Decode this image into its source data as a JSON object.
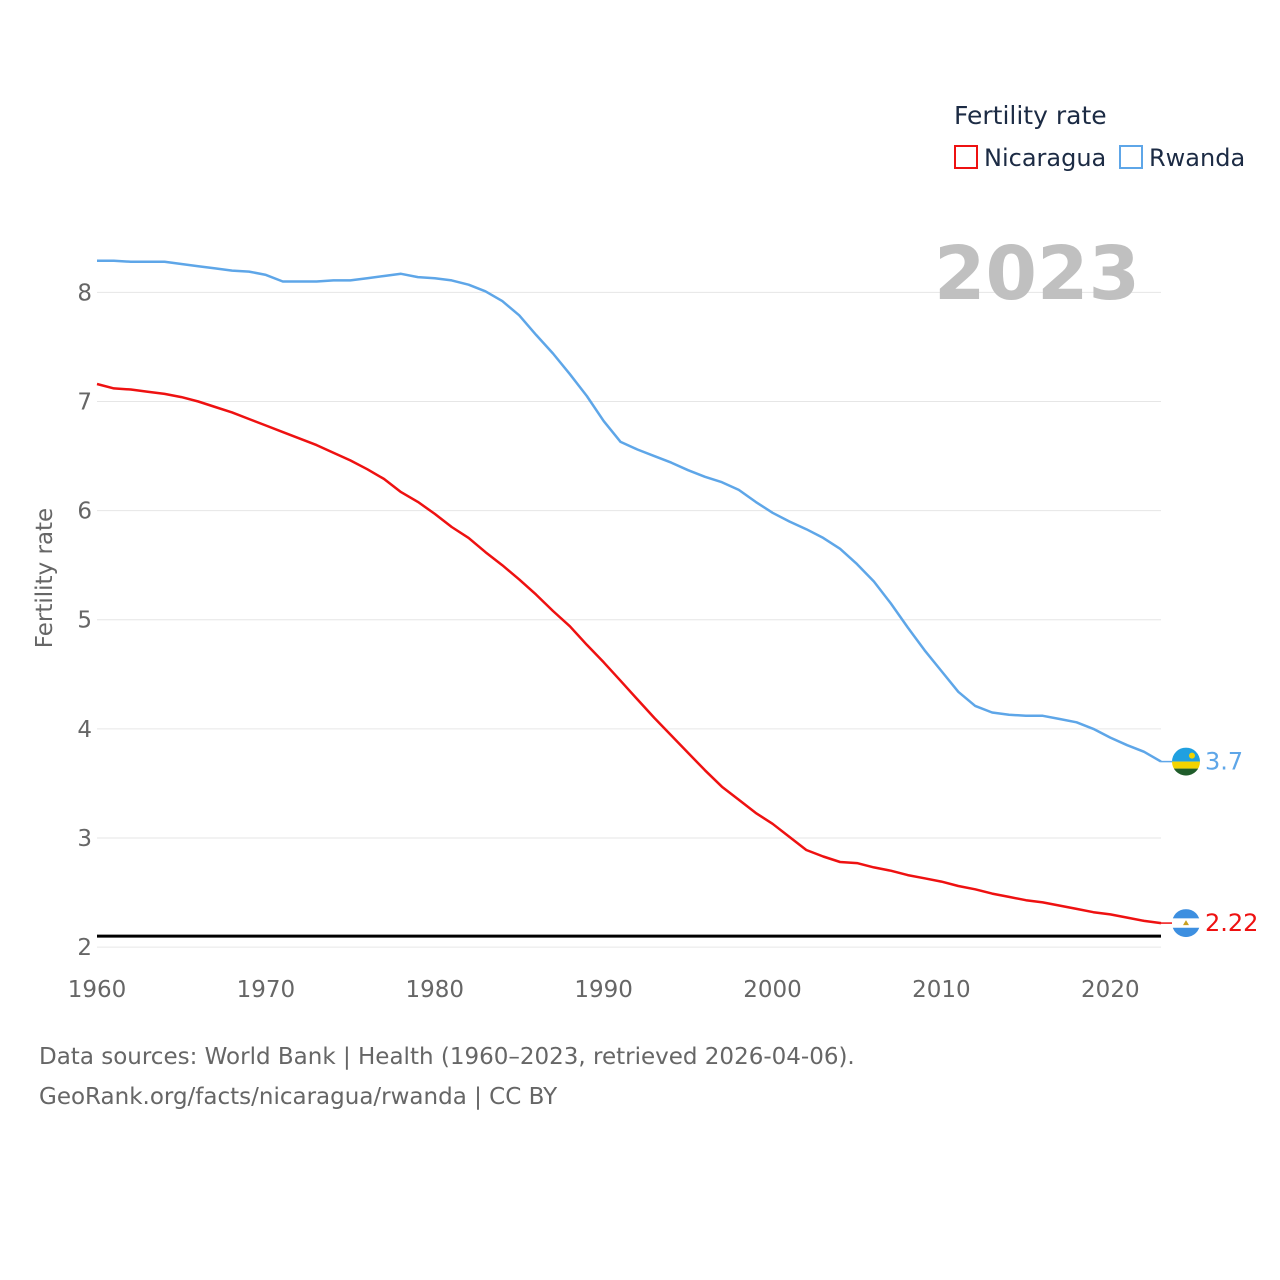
{
  "chart_data": {
    "type": "line",
    "legend_title": "Fertility rate",
    "ylabel": "Fertility rate",
    "year_label": "2023",
    "ylim": [
      1.9,
      8.7
    ],
    "xlim": [
      1960,
      2023
    ],
    "x_ticks": [
      1960,
      1970,
      1980,
      1990,
      2000,
      2010,
      2020
    ],
    "y_ticks": [
      2,
      3,
      4,
      5,
      6,
      7,
      8
    ],
    "reference_line": 2.1,
    "x": [
      1960,
      1961,
      1962,
      1963,
      1964,
      1965,
      1966,
      1967,
      1968,
      1969,
      1970,
      1971,
      1972,
      1973,
      1974,
      1975,
      1976,
      1977,
      1978,
      1979,
      1980,
      1981,
      1982,
      1983,
      1984,
      1985,
      1986,
      1987,
      1988,
      1989,
      1990,
      1991,
      1992,
      1993,
      1994,
      1995,
      1996,
      1997,
      1998,
      1999,
      2000,
      2001,
      2002,
      2003,
      2004,
      2005,
      2006,
      2007,
      2008,
      2009,
      2010,
      2011,
      2012,
      2013,
      2014,
      2015,
      2016,
      2017,
      2018,
      2019,
      2020,
      2021,
      2022,
      2023
    ],
    "series": [
      {
        "name": "Nicaragua",
        "color": "#ee1111",
        "end_label": "2.22",
        "flag": "nicaragua-flag",
        "values": [
          7.16,
          7.12,
          7.11,
          7.09,
          7.07,
          7.04,
          7.0,
          6.95,
          6.9,
          6.84,
          6.78,
          6.72,
          6.66,
          6.6,
          6.53,
          6.46,
          6.38,
          6.29,
          6.17,
          6.08,
          5.97,
          5.85,
          5.75,
          5.62,
          5.5,
          5.37,
          5.23,
          5.08,
          4.94,
          4.77,
          4.61,
          4.44,
          4.27,
          4.1,
          3.94,
          3.78,
          3.62,
          3.47,
          3.35,
          3.23,
          3.13,
          3.01,
          2.89,
          2.83,
          2.78,
          2.77,
          2.73,
          2.7,
          2.66,
          2.63,
          2.6,
          2.56,
          2.53,
          2.49,
          2.46,
          2.43,
          2.41,
          2.38,
          2.35,
          2.32,
          2.3,
          2.27,
          2.24,
          2.22
        ]
      },
      {
        "name": "Rwanda",
        "color": "#5ea6e8",
        "end_label": "3.7",
        "flag": "rwanda-flag",
        "values": [
          8.29,
          8.29,
          8.28,
          8.28,
          8.28,
          8.26,
          8.24,
          8.22,
          8.2,
          8.19,
          8.16,
          8.1,
          8.1,
          8.1,
          8.11,
          8.11,
          8.13,
          8.15,
          8.17,
          8.14,
          8.13,
          8.11,
          8.07,
          8.01,
          7.92,
          7.79,
          7.61,
          7.44,
          7.25,
          7.05,
          6.82,
          6.63,
          6.56,
          6.5,
          6.44,
          6.37,
          6.31,
          6.26,
          6.19,
          6.08,
          5.98,
          5.9,
          5.83,
          5.75,
          5.65,
          5.51,
          5.35,
          5.15,
          4.93,
          4.72,
          4.53,
          4.34,
          4.21,
          4.15,
          4.13,
          4.12,
          4.12,
          4.09,
          4.06,
          4.0,
          3.92,
          3.85,
          3.79,
          3.7
        ]
      }
    ]
  },
  "footer": {
    "line1": "Data sources: World Bank | Health (1960–2023, retrieved 2026-04-06).",
    "line2": "GeoRank.org/facts/nicaragua/rwanda | CC BY"
  }
}
